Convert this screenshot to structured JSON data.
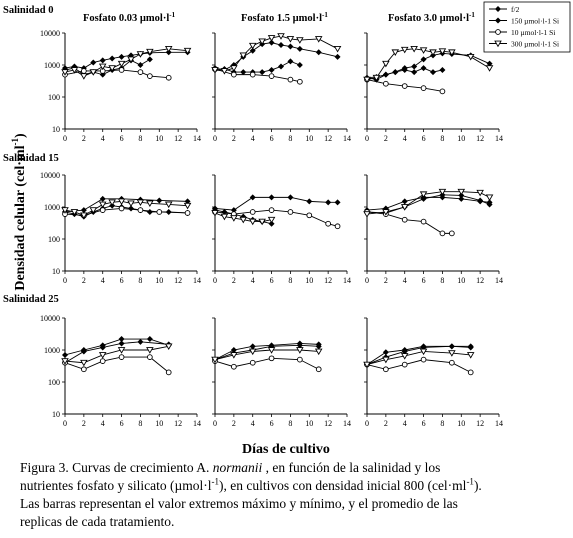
{
  "figure": {
    "xlabel": "Días de cultivo",
    "ylabel": "Densidad celular (cel·ml",
    "ylabel_sup": "-1",
    "ylabel_close": ")",
    "row_titles": [
      "Salinidad 0",
      "Salinidad 15",
      "Salinidad 25"
    ],
    "col_titles": [
      "Fosfato 0.03 µmol·l",
      "Fosfato 1.5 µmol·l",
      "Fosfato 3.0 µmol·l"
    ],
    "col_title_sup": "-1",
    "legend": [
      {
        "label": "f/2",
        "marker": "diamond"
      },
      {
        "label": "150 µmol·l-1 Si",
        "marker": "diamond"
      },
      {
        "label": "10 µmol·l-1 Si",
        "marker": "circle"
      },
      {
        "label": "300 µmol·l-1 Si",
        "marker": "triangle-down"
      }
    ],
    "legend_position": "top-right",
    "y_ticks": [
      "10",
      "100",
      "1000",
      "10000"
    ],
    "x_ticks": [
      "0",
      "2",
      "4",
      "6",
      "8",
      "10",
      "12",
      "14"
    ]
  },
  "caption": {
    "line1_a": "Figura 3. Curvas de crecimiento A. ",
    "line1_species": "normanii",
    "line1_b": " , en función de la salinidad y   los",
    "line2_a": "nutrientes fosfato y silicato (µmol·l",
    "line2_sup1": "-1",
    "line2_b": "), en cultivos con densidad  inicial 800 (cel·ml",
    "line2_sup2": "-1",
    "line2_c": ").",
    "line3": "Las barras representan el valor extremos máximo y mínimo, y el promedio de las",
    "line4": "replicas de cada tratamiento."
  },
  "chart_data": {
    "type": "line",
    "title": "",
    "xlabel": "Días de cultivo",
    "ylabel": "Densidad celular (cel·ml-1)",
    "xlim": [
      0,
      14
    ],
    "ylim": [
      10,
      10000
    ],
    "yscale": "log",
    "grid": false,
    "legend": "top-right",
    "panels": [
      {
        "row": 0,
        "col": 0,
        "series": [
          {
            "name": "f/2",
            "x": [
              0,
              1,
              2,
              3,
              4,
              5,
              6,
              7,
              8,
              9,
              11,
              13
            ],
            "values": [
              800,
              900,
              800,
              1200,
              1400,
              1600,
              1800,
              2000,
              2200,
              2400,
              2500,
              2500
            ]
          },
          {
            "name": "150 µmol·l-1 Si",
            "x": [
              0,
              1,
              2,
              3,
              4,
              5,
              6,
              7,
              8,
              9
            ],
            "values": [
              700,
              800,
              500,
              600,
              500,
              700,
              800,
              1400,
              1000,
              1500
            ]
          },
          {
            "name": "10 µmol·l-1 Si",
            "x": [
              0,
              2,
              4,
              6,
              8,
              9,
              11
            ],
            "values": [
              500,
              650,
              650,
              700,
              600,
              450,
              400
            ]
          },
          {
            "name": "300 µmol·l-1 Si",
            "x": [
              0,
              1,
              2,
              3,
              4,
              5,
              6,
              7,
              8,
              9,
              11,
              13
            ],
            "values": [
              600,
              700,
              450,
              600,
              900,
              800,
              1100,
              1500,
              2200,
              2600,
              3200,
              2800
            ]
          }
        ]
      },
      {
        "row": 0,
        "col": 1,
        "series": [
          {
            "name": "f/2",
            "x": [
              0,
              1,
              2,
              3,
              4,
              5,
              6,
              7,
              8,
              9,
              11,
              13
            ],
            "values": [
              800,
              700,
              1000,
              1800,
              2800,
              4500,
              5000,
              4200,
              3800,
              3200,
              2500,
              1800
            ]
          },
          {
            "name": "150 µmol·l-1 Si",
            "x": [
              0,
              1,
              2,
              3,
              4,
              5,
              6,
              7,
              8,
              9
            ],
            "values": [
              700,
              750,
              600,
              600,
              600,
              600,
              700,
              900,
              1300,
              1000
            ]
          },
          {
            "name": "10 µmol·l-1 Si",
            "x": [
              0,
              2,
              4,
              6,
              8,
              9
            ],
            "values": [
              750,
              500,
              500,
              450,
              350,
              300
            ]
          },
          {
            "name": "300 µmol·l-1 Si",
            "x": [
              0,
              1,
              2,
              3,
              4,
              5,
              6,
              7,
              8,
              9,
              11,
              13
            ],
            "values": [
              700,
              650,
              800,
              2000,
              4000,
              5500,
              7000,
              8000,
              6500,
              6000,
              6500,
              3200
            ]
          }
        ]
      },
      {
        "row": 0,
        "col": 2,
        "series": [
          {
            "name": "f/2",
            "x": [
              0,
              1,
              2,
              3,
              4,
              5,
              6,
              7,
              8,
              9,
              11,
              13
            ],
            "values": [
              400,
              350,
              500,
              600,
              800,
              900,
              1500,
              2000,
              2300,
              2200,
              2000,
              1100
            ]
          },
          {
            "name": "150 µmol·l-1 Si",
            "x": [
              0,
              1,
              2,
              3,
              4,
              5,
              6,
              7,
              8
            ],
            "values": [
              400,
              420,
              500,
              600,
              700,
              600,
              800,
              600,
              700
            ]
          },
          {
            "name": "10 µmol·l-1 Si",
            "x": [
              0,
              2,
              4,
              6,
              8
            ],
            "values": [
              350,
              260,
              220,
              190,
              150
            ]
          },
          {
            "name": "300 µmol·l-1 Si",
            "x": [
              0,
              1,
              2,
              3,
              4,
              5,
              6,
              7,
              8,
              9,
              11,
              13
            ],
            "values": [
              350,
              400,
              1100,
              2500,
              3000,
              3200,
              2900,
              2500,
              2700,
              2500,
              1800,
              800
            ]
          }
        ]
      },
      {
        "row": 1,
        "col": 0,
        "series": [
          {
            "name": "f/2",
            "x": [
              0,
              2,
              4,
              6,
              8,
              10,
              13
            ],
            "values": [
              700,
              800,
              1800,
              1800,
              1700,
              1600,
              1500
            ]
          },
          {
            "name": "150 µmol·l-1 Si",
            "x": [
              0,
              1,
              2,
              3,
              4,
              5,
              6,
              7,
              8,
              9,
              11,
              13
            ],
            "values": [
              700,
              600,
              500,
              700,
              900,
              1100,
              1000,
              900,
              800,
              700,
              700,
              650
            ]
          },
          {
            "name": "10 µmol·l-1 Si",
            "x": [
              0,
              2,
              4,
              6,
              8,
              10,
              13
            ],
            "values": [
              600,
              550,
              800,
              900,
              800,
              700,
              650
            ]
          },
          {
            "name": "300 µmol·l-1 Si",
            "x": [
              0,
              1,
              2,
              3,
              4,
              5,
              6,
              7,
              8,
              9,
              11,
              13
            ],
            "values": [
              800,
              700,
              550,
              800,
              1200,
              1400,
              1500,
              1300,
              1400,
              1300,
              1200,
              1100
            ]
          }
        ]
      },
      {
        "row": 1,
        "col": 1,
        "series": [
          {
            "name": "f/2",
            "x": [
              0,
              2,
              4,
              6,
              8,
              10,
              12,
              13
            ],
            "values": [
              900,
              800,
              2000,
              2000,
              2000,
              1500,
              1400,
              1400
            ]
          },
          {
            "name": "150 µmol·l-1 Si",
            "x": [
              0,
              1,
              2,
              3,
              4,
              5,
              6
            ],
            "values": [
              800,
              700,
              600,
              500,
              400,
              350,
              300
            ]
          },
          {
            "name": "10 µmol·l-1 Si",
            "x": [
              0,
              2,
              4,
              6,
              8,
              10,
              12,
              13
            ],
            "values": [
              700,
              600,
              700,
              800,
              700,
              550,
              300,
              250
            ]
          },
          {
            "name": "300 µmol·l-1 Si",
            "x": [
              0,
              1,
              2,
              3,
              4,
              5,
              6
            ],
            "values": [
              650,
              500,
              450,
              400,
              350,
              350,
              400
            ]
          }
        ]
      },
      {
        "row": 1,
        "col": 2,
        "series": [
          {
            "name": "f/2",
            "x": [
              0,
              2,
              4,
              6,
              8,
              10,
              12,
              13
            ],
            "values": [
              800,
              900,
              1500,
              2000,
              2000,
              1800,
              1500,
              1400
            ]
          },
          {
            "name": "150 µmol·l-1 Si",
            "x": [
              0,
              2,
              4,
              6,
              8,
              10,
              12,
              13
            ],
            "values": [
              700,
              650,
              1000,
              1800,
              2400,
              2300,
              1600,
              1200
            ]
          },
          {
            "name": "10 µmol·l-1 Si",
            "x": [
              0,
              2,
              4,
              6,
              8,
              9
            ],
            "values": [
              700,
              600,
              400,
              350,
              150,
              150
            ]
          },
          {
            "name": "300 µmol·l-1 Si",
            "x": [
              0,
              2,
              4,
              6,
              8,
              10,
              12,
              13
            ],
            "values": [
              600,
              700,
              1000,
              2500,
              3000,
              3000,
              2800,
              2000
            ]
          }
        ]
      },
      {
        "row": 2,
        "col": 0,
        "series": [
          {
            "name": "f/2",
            "x": [
              0,
              2,
              4,
              6,
              8,
              11
            ],
            "values": [
              400,
              900,
              1200,
              1600,
              1800,
              1500
            ]
          },
          {
            "name": "150 µmol·l-1 Si",
            "x": [
              0,
              2,
              4,
              6,
              9,
              11
            ],
            "values": [
              700,
              1000,
              1400,
              2200,
              2200,
              1400
            ]
          },
          {
            "name": "10 µmol·l-1 Si",
            "x": [
              0,
              2,
              4,
              6,
              9,
              11
            ],
            "values": [
              400,
              250,
              450,
              600,
              600,
              200
            ]
          },
          {
            "name": "300 µmol·l-1 Si",
            "x": [
              0,
              2,
              4,
              6,
              9,
              11
            ],
            "values": [
              450,
              400,
              700,
              1000,
              1000,
              1300
            ]
          }
        ]
      },
      {
        "row": 2,
        "col": 1,
        "series": [
          {
            "name": "f/2",
            "x": [
              0,
              2,
              4,
              6,
              9,
              11
            ],
            "values": [
              500,
              1000,
              1300,
              1400,
              1600,
              1500
            ]
          },
          {
            "name": "150 µmol·l-1 Si",
            "x": [
              0,
              2,
              4,
              6,
              9,
              11
            ],
            "values": [
              500,
              800,
              1000,
              1300,
              1400,
              1300
            ]
          },
          {
            "name": "10 µmol·l-1 Si",
            "x": [
              0,
              2,
              4,
              6,
              9,
              11
            ],
            "values": [
              450,
              300,
              400,
              550,
              500,
              250
            ]
          },
          {
            "name": "300 µmol·l-1 Si",
            "x": [
              0,
              2,
              4,
              6,
              9,
              11
            ],
            "values": [
              500,
              700,
              900,
              1000,
              1000,
              900
            ]
          }
        ]
      },
      {
        "row": 2,
        "col": 2,
        "series": [
          {
            "name": "f/2",
            "x": [
              0,
              2,
              4,
              6,
              9,
              11
            ],
            "values": [
              350,
              850,
              1000,
              1300,
              1300,
              1300
            ]
          },
          {
            "name": "150 µmol·l-1 Si",
            "x": [
              0,
              2,
              4,
              6,
              9,
              11
            ],
            "values": [
              350,
              600,
              900,
              1200,
              1300,
              1200
            ]
          },
          {
            "name": "10 µmol·l-1 Si",
            "x": [
              0,
              2,
              4,
              6,
              9,
              11
            ],
            "values": [
              350,
              250,
              350,
              500,
              400,
              200
            ]
          },
          {
            "name": "300 µmol·l-1 Si",
            "x": [
              0,
              2,
              4,
              6,
              9,
              11
            ],
            "values": [
              350,
              500,
              650,
              900,
              800,
              700
            ]
          }
        ]
      }
    ]
  }
}
